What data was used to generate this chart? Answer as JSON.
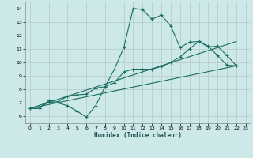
{
  "xlabel": "Humidex (Indice chaleur)",
  "bg_color": "#cce8e8",
  "grid_color": "#b8c8c8",
  "line_color": "#1a6e60",
  "xlim": [
    -0.5,
    23.5
  ],
  "ylim": [
    5.5,
    14.5
  ],
  "xticks": [
    0,
    1,
    2,
    3,
    4,
    5,
    6,
    7,
    8,
    9,
    10,
    11,
    12,
    13,
    14,
    15,
    16,
    17,
    18,
    19,
    20,
    21,
    22,
    23
  ],
  "yticks": [
    6,
    7,
    8,
    9,
    10,
    11,
    12,
    13,
    14
  ],
  "line1_x": [
    0,
    1,
    2,
    3,
    4,
    5,
    6,
    7,
    8,
    9,
    10,
    11,
    12,
    13,
    14,
    15,
    16,
    17,
    18,
    19,
    20,
    21,
    22
  ],
  "line1_y": [
    6.6,
    6.6,
    7.1,
    7.0,
    6.8,
    6.4,
    5.95,
    6.8,
    8.2,
    9.5,
    11.1,
    14.0,
    13.9,
    13.2,
    13.5,
    12.7,
    11.1,
    11.5,
    11.55,
    11.2,
    10.5,
    9.8,
    9.75
  ],
  "line2_x": [
    0,
    1,
    2,
    3,
    4,
    5,
    6,
    7,
    8,
    9,
    10,
    11,
    12,
    13,
    14,
    15,
    16,
    17,
    18,
    19,
    20,
    21,
    22
  ],
  "line2_y": [
    6.6,
    6.6,
    7.2,
    7.1,
    7.5,
    7.6,
    7.65,
    8.1,
    8.2,
    8.5,
    9.3,
    9.5,
    9.5,
    9.5,
    9.7,
    10.0,
    10.4,
    11.0,
    11.55,
    11.15,
    11.2,
    10.5,
    9.75
  ],
  "line3_x": [
    0,
    22
  ],
  "line3_y": [
    6.6,
    9.75
  ],
  "line4_x": [
    0,
    22
  ],
  "line4_y": [
    6.6,
    11.55
  ]
}
